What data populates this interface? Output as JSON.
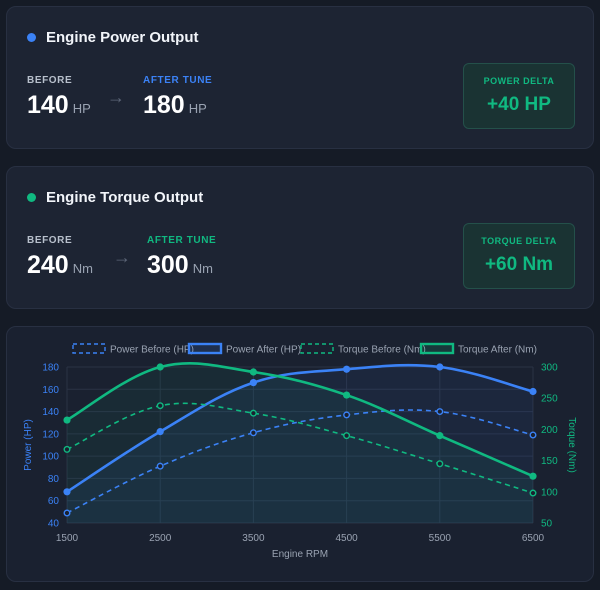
{
  "power_card": {
    "title": "Engine Power Output",
    "before_label": "BEFORE",
    "before_value": "140",
    "before_unit": "HP",
    "after_label": "AFTER TUNE",
    "after_value": "180",
    "after_unit": "HP",
    "delta_label": "POWER DELTA",
    "delta_value": "+40 HP",
    "accent": "#3b82f6"
  },
  "torque_card": {
    "title": "Engine Torque Output",
    "before_label": "BEFORE",
    "before_value": "240",
    "before_unit": "Nm",
    "after_label": "AFTER TUNE",
    "after_value": "300",
    "after_unit": "Nm",
    "delta_label": "TORQUE DELTA",
    "delta_value": "+60 Nm",
    "accent": "#10b981"
  },
  "arrow_glyph": "→",
  "chart_data": {
    "type": "line",
    "xlabel": "Engine RPM",
    "ylabel_left": "Power (HP)",
    "ylabel_right": "Torque (Nm)",
    "x": [
      1500,
      2500,
      3500,
      4500,
      5500,
      6500
    ],
    "x_ticks": [
      "1500",
      "2500",
      "3500",
      "4500",
      "5500",
      "6500"
    ],
    "y_left_ticks": [
      "40",
      "60",
      "80",
      "100",
      "120",
      "140",
      "160",
      "180"
    ],
    "y_right_ticks": [
      "50",
      "100",
      "150",
      "200",
      "250",
      "300"
    ],
    "ylim_left": [
      40,
      180
    ],
    "ylim_right": [
      50,
      300
    ],
    "grid": true,
    "legend_position": "top",
    "series": [
      {
        "name": "Power Before (HP)",
        "axis": "left",
        "style": "dashed",
        "color": "#3b82f6",
        "values": [
          49,
          91,
          121,
          137,
          140,
          119
        ]
      },
      {
        "name": "Power After (HP)",
        "axis": "left",
        "style": "solid",
        "color": "#3b82f6",
        "values": [
          68,
          122,
          166,
          178,
          180,
          158
        ]
      },
      {
        "name": "Torque Before (Nm)",
        "axis": "right",
        "style": "dashed",
        "color": "#10b981",
        "values": [
          168,
          238,
          226,
          190,
          145,
          98
        ]
      },
      {
        "name": "Torque After (Nm)",
        "axis": "right",
        "style": "solid",
        "color": "#10b981",
        "values": [
          215,
          300,
          292,
          255,
          190,
          125
        ]
      }
    ]
  }
}
